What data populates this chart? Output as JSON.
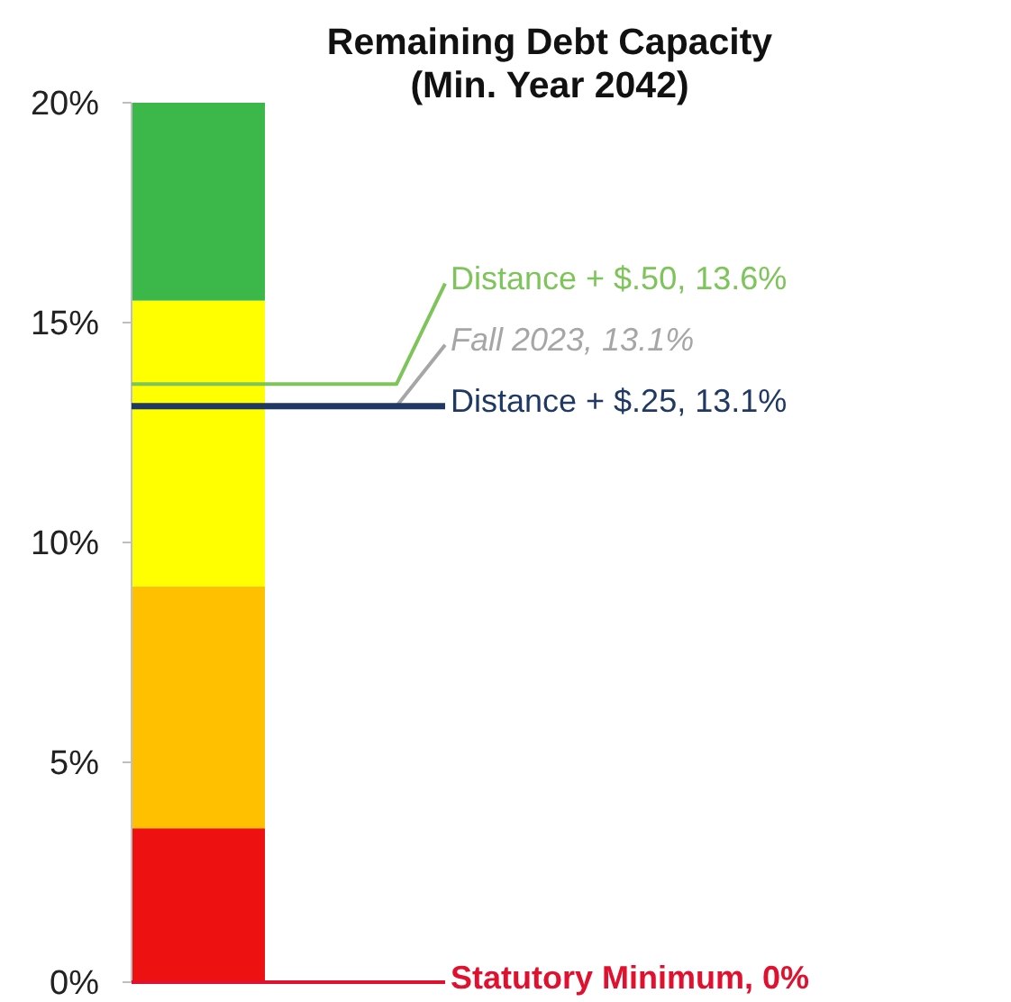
{
  "chart_data": {
    "type": "bar",
    "title": "Remaining Debt Capacity\n(Min. Year 2042)",
    "categories": [
      null
    ],
    "stacked": true,
    "series": [
      {
        "color": "#ee1111",
        "values": [
          3.5
        ]
      },
      {
        "color": "#ffc000",
        "values": [
          5.5
        ]
      },
      {
        "color": "#ffff00",
        "values": [
          6.5
        ]
      },
      {
        "color": "#3cb84a",
        "values": [
          4.5
        ]
      }
    ],
    "ylim": [
      0,
      20
    ],
    "yticks": [
      {
        "value": 0,
        "label": "0%"
      },
      {
        "value": 5,
        "label": "5%"
      },
      {
        "value": 10,
        "label": "10%"
      },
      {
        "value": 15,
        "label": "15%"
      },
      {
        "value": 20,
        "label": "20%"
      }
    ],
    "ref_lines": [
      {
        "axis": "y",
        "value": 13.1,
        "label": "Fall 2023, 13.1%",
        "color": "#a6a6a6"
      },
      {
        "axis": "y",
        "value": 13.1,
        "label": "Distance + $.25, 13.1%",
        "color": "#1f3864"
      },
      {
        "axis": "y",
        "value": 13.6,
        "label": "Distance + $.50, 13.6%",
        "color": "#7dc45a"
      },
      {
        "axis": "y",
        "value": 0,
        "label": "Statutory Minimum, 0%",
        "color": "#e0102f"
      }
    ]
  }
}
